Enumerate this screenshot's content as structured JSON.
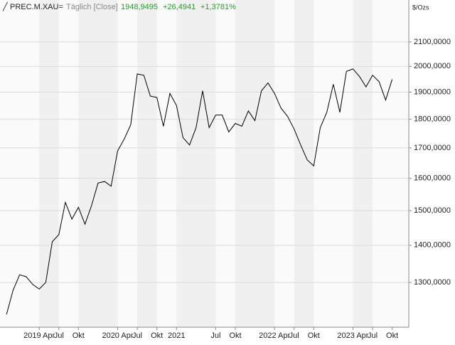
{
  "chart_data": {
    "type": "line",
    "title": "PREC.M.XAU=",
    "subtitle": "Täglich [Close]",
    "annotations": [
      "1948,9495",
      "+26,4941",
      "+1,3781%"
    ],
    "y_label": "$/Ozs",
    "log_y": true,
    "grid": true,
    "xlim": [
      "2018-10",
      "2023-12"
    ],
    "ylim": [
      1189,
      2283
    ],
    "xticks": [
      {
        "value": "2019-04",
        "label": "2019 Apr"
      },
      {
        "value": "2019-07",
        "label": "Jul"
      },
      {
        "value": "2019-10",
        "label": "Okt"
      },
      {
        "value": "2020-04",
        "label": "2020 Apr"
      },
      {
        "value": "2020-07",
        "label": "Jul"
      },
      {
        "value": "2020-10",
        "label": "Okt"
      },
      {
        "value": "2021-01",
        "label": "2021"
      },
      {
        "value": "2021-07",
        "label": "Jul"
      },
      {
        "value": "2021-10",
        "label": "Okt"
      },
      {
        "value": "2022-04",
        "label": "2022 Apr"
      },
      {
        "value": "2022-07",
        "label": "Jul"
      },
      {
        "value": "2022-10",
        "label": "Okt"
      },
      {
        "value": "2023-04",
        "label": "2023 Apr"
      },
      {
        "value": "2023-07",
        "label": "Jul"
      },
      {
        "value": "2023-10",
        "label": "Okt"
      }
    ],
    "yticks": [
      {
        "value": 1300,
        "label": "1300,0000"
      },
      {
        "value": 1400,
        "label": "1400,0000"
      },
      {
        "value": 1500,
        "label": "1500,0000"
      },
      {
        "value": 1600,
        "label": "1600,0000"
      },
      {
        "value": 1700,
        "label": "1700,0000"
      },
      {
        "value": 1800,
        "label": "1800,0000"
      },
      {
        "value": 1900,
        "label": "1900,0000"
      },
      {
        "value": 2000,
        "label": "2000,0000"
      },
      {
        "value": 2100,
        "label": "2100,0000"
      }
    ],
    "x": [
      "2018-11",
      "2018-12",
      "2019-01",
      "2019-02",
      "2019-03",
      "2019-04",
      "2019-05",
      "2019-06",
      "2019-07",
      "2019-08",
      "2019-09",
      "2019-10",
      "2019-11",
      "2019-12",
      "2020-01",
      "2020-02",
      "2020-03",
      "2020-04",
      "2020-05",
      "2020-06",
      "2020-07",
      "2020-08",
      "2020-09",
      "2020-10",
      "2020-11",
      "2020-12",
      "2021-01",
      "2021-02",
      "2021-03",
      "2021-04",
      "2021-05",
      "2021-06",
      "2021-07",
      "2021-08",
      "2021-09",
      "2021-10",
      "2021-11",
      "2021-12",
      "2022-01",
      "2022-02",
      "2022-03",
      "2022-04",
      "2022-05",
      "2022-06",
      "2022-07",
      "2022-08",
      "2022-09",
      "2022-10",
      "2022-11",
      "2022-12",
      "2023-01",
      "2023-02",
      "2023-03",
      "2023-04",
      "2023-05",
      "2023-06",
      "2023-07",
      "2023-08",
      "2023-09",
      "2023-10"
    ],
    "series": [
      {
        "name": "PREC.M.XAU=",
        "color": "#000000",
        "values": [
          1220,
          1280,
          1320,
          1315,
          1295,
          1283,
          1300,
          1410,
          1430,
          1525,
          1475,
          1510,
          1460,
          1515,
          1585,
          1590,
          1575,
          1690,
          1730,
          1780,
          1970,
          1965,
          1885,
          1880,
          1775,
          1895,
          1850,
          1735,
          1710,
          1770,
          1905,
          1770,
          1815,
          1815,
          1755,
          1785,
          1775,
          1830,
          1795,
          1905,
          1935,
          1895,
          1840,
          1810,
          1765,
          1710,
          1660,
          1640,
          1770,
          1825,
          1930,
          1825,
          1980,
          1990,
          1960,
          1920,
          1965,
          1940,
          1870,
          1948.9495
        ]
      }
    ]
  }
}
